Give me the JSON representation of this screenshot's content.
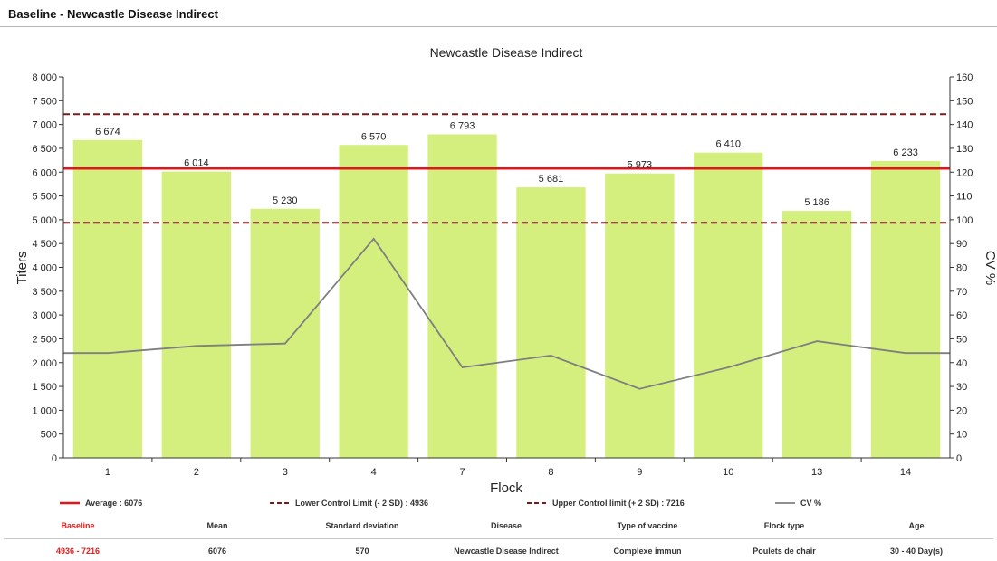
{
  "header": {
    "title": "Baseline - Newcastle Disease Indirect"
  },
  "colors": {
    "bar": "#d4ef7e",
    "average": "#e5141b",
    "control_limit": "#7a1b1b",
    "cv_line": "#7f7f7f",
    "baseline_text": "#e0201f"
  },
  "chart_data": {
    "type": "bar",
    "title": "Newcastle Disease Indirect",
    "xlabel": "Flock",
    "ylabel": "Titers",
    "y2label": "CV %",
    "categories": [
      "1",
      "2",
      "3",
      "4",
      "7",
      "8",
      "9",
      "10",
      "13",
      "14"
    ],
    "series": [
      {
        "type": "bar",
        "axis": "left",
        "values": [
          6674,
          6014,
          5230,
          6570,
          6793,
          5681,
          5973,
          6410,
          5186,
          6233
        ]
      },
      {
        "type": "line",
        "axis": "right",
        "name": "CV %",
        "values": [
          44,
          47,
          48,
          92,
          38,
          43,
          29,
          38,
          49,
          44
        ]
      }
    ],
    "data_labels": [
      "6 674",
      "6 014",
      "5 230",
      "6 570",
      "6 793",
      "5 681",
      "5 973",
      "6 410",
      "5 186",
      "6 233"
    ],
    "reference_lines": [
      {
        "name": "Average : 6076",
        "value": 6076,
        "style": "solid"
      },
      {
        "name": "Lower Control Limit  (- 2 SD) : 4936",
        "value": 4936,
        "style": "dashed"
      },
      {
        "name": "Upper Control limit  (+ 2 SD) : 7216",
        "value": 7216,
        "style": "dashed"
      }
    ],
    "ylim": [
      0,
      8000
    ],
    "y2lim": [
      0,
      160
    ],
    "yticks": [
      0,
      500,
      1000,
      1500,
      2000,
      2500,
      3000,
      3500,
      4000,
      4500,
      5000,
      5500,
      6000,
      6500,
      7000,
      7500,
      8000
    ],
    "ytick_labels": [
      "0",
      "500",
      "1 000",
      "1 500",
      "2 000",
      "2 500",
      "3 000",
      "3 500",
      "4 000",
      "4 500",
      "5 000",
      "5 500",
      "6 000",
      "6 500",
      "7 000",
      "7 500",
      "8 000"
    ],
    "y2ticks": [
      0,
      10,
      20,
      30,
      40,
      50,
      60,
      70,
      80,
      90,
      100,
      110,
      120,
      130,
      140,
      150,
      160
    ],
    "legend": [
      {
        "label": "Average : 6076",
        "style": "solid"
      },
      {
        "label": "Lower Control Limit  (- 2 SD) : 4936",
        "style": "dashed"
      },
      {
        "label": "Upper Control limit  (+ 2 SD) : 7216",
        "style": "dashed"
      },
      {
        "label": "CV %",
        "style": "grey"
      }
    ],
    "legend_position": "bottom",
    "grid": false
  },
  "summary": {
    "headers": [
      "Baseline",
      "Mean",
      "Standard deviation",
      "Disease",
      "Type of vaccine",
      "Flock type",
      "Age"
    ],
    "values": [
      "4936 - 7216",
      "6076",
      "570",
      "Newcastle Disease Indirect",
      "Complexe immun",
      "Poulets de chair",
      "30 - 40 Day(s)"
    ]
  }
}
